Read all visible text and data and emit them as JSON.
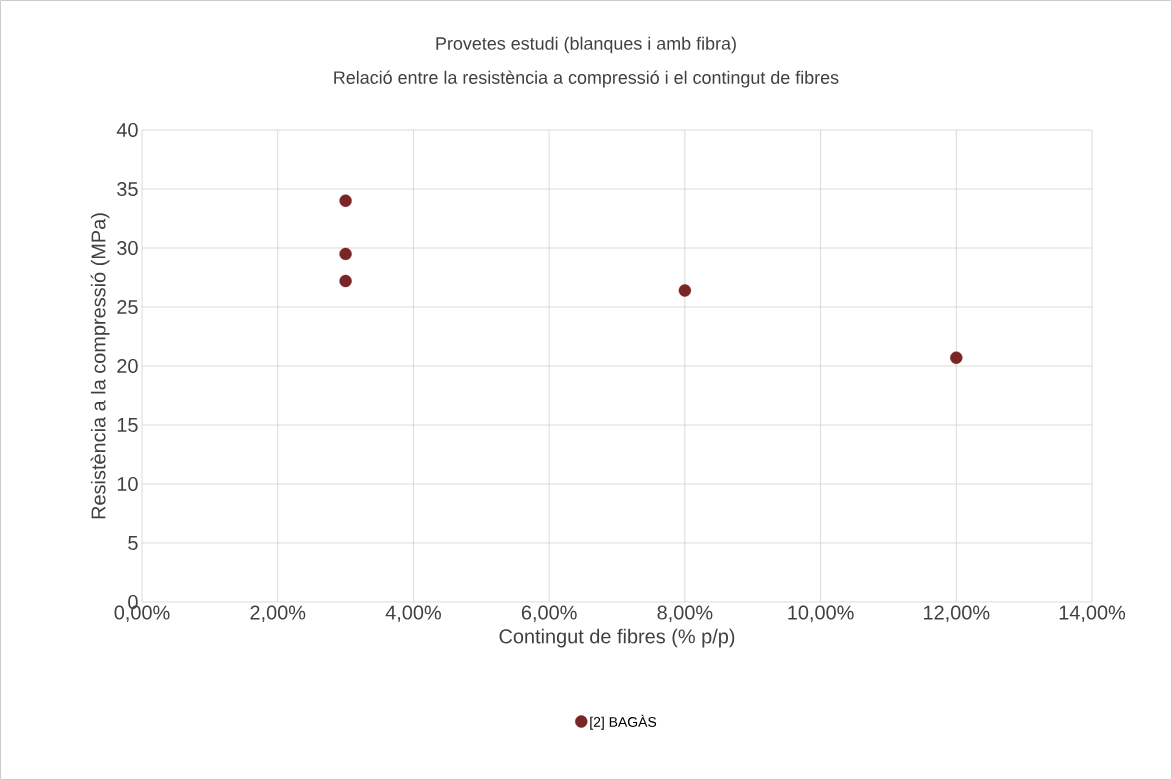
{
  "chart_data": {
    "type": "scatter",
    "title": "Provetes estudi (blanques i amb fibra)",
    "subtitle": "Relació entre la resistència a compressió i el contingut de fibres",
    "xlabel": "Contingut de fibres (% p/p)",
    "ylabel": "Resistència a la compressió (MPa)",
    "xlim": [
      0,
      0.14
    ],
    "xticks": [
      {
        "value": 0,
        "label": "0,00%"
      },
      {
        "value": 0.02,
        "label": "2,00%"
      },
      {
        "value": 0.04,
        "label": "4,00%"
      },
      {
        "value": 0.06,
        "label": "6,00%"
      },
      {
        "value": 0.08,
        "label": "8,00%"
      },
      {
        "value": 0.1,
        "label": "10,00%"
      },
      {
        "value": 0.12,
        "label": "12,00%"
      },
      {
        "value": 0.14,
        "label": "14,00%"
      }
    ],
    "ylim": [
      0,
      40
    ],
    "yticks": [
      0,
      5,
      10,
      15,
      20,
      25,
      30,
      35,
      40
    ],
    "series": [
      {
        "name": "[2] BAGÀS",
        "color": "#7b2626",
        "x": [
          0.03,
          0.03,
          0.03,
          0.08,
          0.12
        ],
        "values": [
          34.0,
          29.5,
          27.2,
          26.4,
          20.7
        ]
      }
    ],
    "marker": "circle",
    "grid": true,
    "legend": "bottom"
  }
}
